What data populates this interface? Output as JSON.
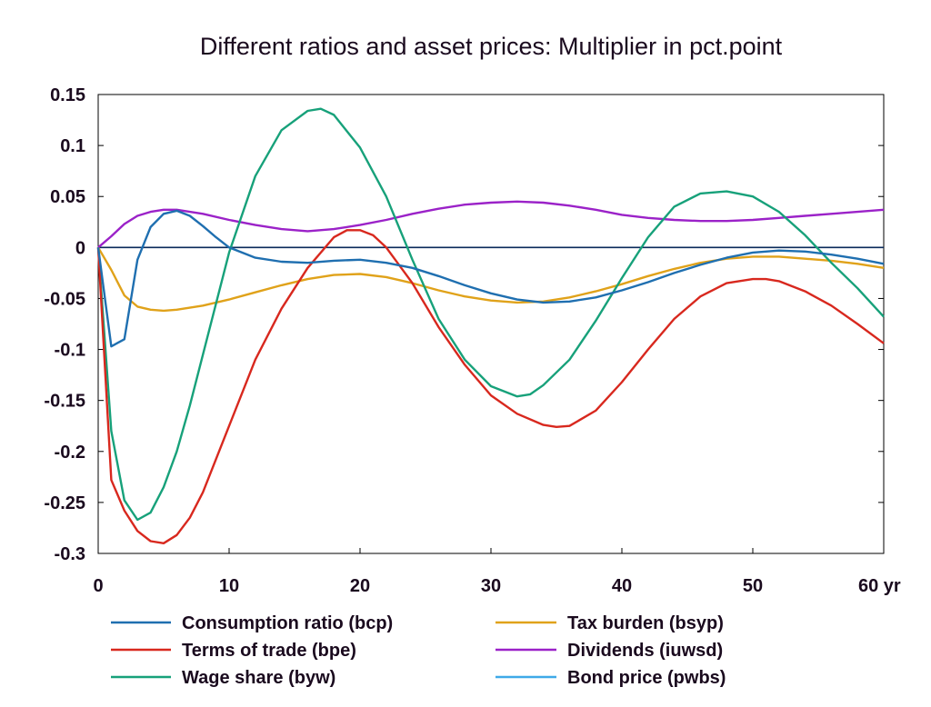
{
  "chart_data": {
    "type": "line",
    "title": "Different ratios and asset prices: Multiplier in pct.point",
    "xlabel": "",
    "ylabel": "",
    "xlim": [
      0,
      60
    ],
    "ylim": [
      -0.3,
      0.15
    ],
    "x_ticks": [
      0,
      10,
      20,
      30,
      40,
      50,
      60
    ],
    "x_tick_labels": [
      "0",
      "10",
      "20",
      "30",
      "40",
      "50",
      "60 yr"
    ],
    "y_ticks": [
      0.15,
      0.1,
      0.05,
      0,
      -0.05,
      -0.1,
      -0.15,
      -0.2,
      -0.25,
      -0.3
    ],
    "y_tick_labels": [
      "0.15",
      "0.1",
      "0.05",
      "0",
      "-0.05",
      "-0.1",
      "-0.15",
      "-0.2",
      "-0.25",
      "-0.3"
    ],
    "grid": false,
    "legend_position": "bottom",
    "series": [
      {
        "name": "Consumption ratio (bcp)",
        "color": "#1f6fb0",
        "points": [
          [
            0,
            0
          ],
          [
            1,
            -0.097
          ],
          [
            2,
            -0.09
          ],
          [
            3,
            -0.012
          ],
          [
            4,
            0.02
          ],
          [
            5,
            0.033
          ],
          [
            6,
            0.036
          ],
          [
            7,
            0.031
          ],
          [
            8,
            0.021
          ],
          [
            9,
            0.01
          ],
          [
            10,
            0
          ],
          [
            12,
            -0.01
          ],
          [
            14,
            -0.014
          ],
          [
            16,
            -0.015
          ],
          [
            18,
            -0.013
          ],
          [
            20,
            -0.012
          ],
          [
            22,
            -0.015
          ],
          [
            24,
            -0.02
          ],
          [
            26,
            -0.028
          ],
          [
            28,
            -0.037
          ],
          [
            30,
            -0.045
          ],
          [
            32,
            -0.051
          ],
          [
            34,
            -0.054
          ],
          [
            36,
            -0.053
          ],
          [
            38,
            -0.049
          ],
          [
            40,
            -0.042
          ],
          [
            42,
            -0.034
          ],
          [
            44,
            -0.025
          ],
          [
            46,
            -0.017
          ],
          [
            48,
            -0.01
          ],
          [
            50,
            -0.005
          ],
          [
            52,
            -0.003
          ],
          [
            54,
            -0.004
          ],
          [
            56,
            -0.007
          ],
          [
            58,
            -0.011
          ],
          [
            60,
            -0.016
          ]
        ]
      },
      {
        "name": "Terms of trade (bpe)",
        "color": "#d8281e",
        "points": [
          [
            0,
            0
          ],
          [
            1,
            -0.228
          ],
          [
            2,
            -0.258
          ],
          [
            3,
            -0.278
          ],
          [
            4,
            -0.288
          ],
          [
            5,
            -0.29
          ],
          [
            6,
            -0.282
          ],
          [
            7,
            -0.265
          ],
          [
            8,
            -0.24
          ],
          [
            10,
            -0.175
          ],
          [
            12,
            -0.11
          ],
          [
            14,
            -0.06
          ],
          [
            16,
            -0.02
          ],
          [
            18,
            0.01
          ],
          [
            19,
            0.017
          ],
          [
            20,
            0.017
          ],
          [
            21,
            0.012
          ],
          [
            22,
            0.0
          ],
          [
            24,
            -0.035
          ],
          [
            26,
            -0.078
          ],
          [
            28,
            -0.115
          ],
          [
            30,
            -0.145
          ],
          [
            32,
            -0.163
          ],
          [
            34,
            -0.174
          ],
          [
            35,
            -0.176
          ],
          [
            36,
            -0.175
          ],
          [
            38,
            -0.16
          ],
          [
            40,
            -0.132
          ],
          [
            42,
            -0.1
          ],
          [
            44,
            -0.07
          ],
          [
            46,
            -0.048
          ],
          [
            48,
            -0.035
          ],
          [
            50,
            -0.031
          ],
          [
            51,
            -0.031
          ],
          [
            52,
            -0.033
          ],
          [
            54,
            -0.043
          ],
          [
            56,
            -0.057
          ],
          [
            58,
            -0.075
          ],
          [
            60,
            -0.094
          ]
        ]
      },
      {
        "name": "Wage share (byw)",
        "color": "#17a17a",
        "points": [
          [
            0,
            0
          ],
          [
            1,
            -0.18
          ],
          [
            2,
            -0.248
          ],
          [
            3,
            -0.267
          ],
          [
            4,
            -0.26
          ],
          [
            5,
            -0.235
          ],
          [
            6,
            -0.2
          ],
          [
            7,
            -0.155
          ],
          [
            8,
            -0.105
          ],
          [
            10,
            -0.005
          ],
          [
            12,
            0.07
          ],
          [
            14,
            0.115
          ],
          [
            16,
            0.134
          ],
          [
            17,
            0.136
          ],
          [
            18,
            0.13
          ],
          [
            20,
            0.098
          ],
          [
            22,
            0.05
          ],
          [
            24,
            -0.012
          ],
          [
            26,
            -0.07
          ],
          [
            28,
            -0.11
          ],
          [
            30,
            -0.136
          ],
          [
            32,
            -0.146
          ],
          [
            33,
            -0.144
          ],
          [
            34,
            -0.135
          ],
          [
            36,
            -0.11
          ],
          [
            38,
            -0.072
          ],
          [
            40,
            -0.03
          ],
          [
            42,
            0.01
          ],
          [
            44,
            0.04
          ],
          [
            46,
            0.053
          ],
          [
            48,
            0.055
          ],
          [
            50,
            0.05
          ],
          [
            52,
            0.035
          ],
          [
            54,
            0.012
          ],
          [
            56,
            -0.015
          ],
          [
            58,
            -0.04
          ],
          [
            60,
            -0.068
          ]
        ]
      },
      {
        "name": "Tax burden (bsyp)",
        "color": "#e0a21a",
        "points": [
          [
            0,
            0
          ],
          [
            1,
            -0.022
          ],
          [
            2,
            -0.047
          ],
          [
            3,
            -0.058
          ],
          [
            4,
            -0.061
          ],
          [
            5,
            -0.062
          ],
          [
            6,
            -0.061
          ],
          [
            8,
            -0.057
          ],
          [
            10,
            -0.051
          ],
          [
            12,
            -0.044
          ],
          [
            14,
            -0.037
          ],
          [
            16,
            -0.031
          ],
          [
            18,
            -0.027
          ],
          [
            20,
            -0.026
          ],
          [
            22,
            -0.029
          ],
          [
            24,
            -0.035
          ],
          [
            26,
            -0.042
          ],
          [
            28,
            -0.048
          ],
          [
            30,
            -0.052
          ],
          [
            32,
            -0.054
          ],
          [
            34,
            -0.053
          ],
          [
            36,
            -0.049
          ],
          [
            38,
            -0.043
          ],
          [
            40,
            -0.036
          ],
          [
            42,
            -0.028
          ],
          [
            44,
            -0.021
          ],
          [
            46,
            -0.015
          ],
          [
            48,
            -0.011
          ],
          [
            50,
            -0.009
          ],
          [
            52,
            -0.009
          ],
          [
            54,
            -0.011
          ],
          [
            56,
            -0.013
          ],
          [
            58,
            -0.016
          ],
          [
            60,
            -0.02
          ]
        ]
      },
      {
        "name": "Dividends (iuwsd)",
        "color": "#9b22c8",
        "points": [
          [
            0,
            0
          ],
          [
            1,
            0.011
          ],
          [
            2,
            0.023
          ],
          [
            3,
            0.031
          ],
          [
            4,
            0.035
          ],
          [
            5,
            0.037
          ],
          [
            6,
            0.037
          ],
          [
            8,
            0.033
          ],
          [
            10,
            0.027
          ],
          [
            12,
            0.022
          ],
          [
            14,
            0.018
          ],
          [
            16,
            0.016
          ],
          [
            18,
            0.018
          ],
          [
            20,
            0.022
          ],
          [
            22,
            0.027
          ],
          [
            24,
            0.033
          ],
          [
            26,
            0.038
          ],
          [
            28,
            0.042
          ],
          [
            30,
            0.044
          ],
          [
            32,
            0.045
          ],
          [
            34,
            0.044
          ],
          [
            36,
            0.041
          ],
          [
            38,
            0.037
          ],
          [
            40,
            0.032
          ],
          [
            42,
            0.029
          ],
          [
            44,
            0.027
          ],
          [
            46,
            0.026
          ],
          [
            48,
            0.026
          ],
          [
            50,
            0.027
          ],
          [
            52,
            0.029
          ],
          [
            54,
            0.031
          ],
          [
            56,
            0.033
          ],
          [
            58,
            0.035
          ],
          [
            60,
            0.037
          ]
        ]
      },
      {
        "name": "Bond price (pwbs)",
        "color": "#3fa9e8",
        "points": []
      }
    ],
    "reference_line": {
      "y": 0,
      "color": "#0a2a5a"
    }
  }
}
